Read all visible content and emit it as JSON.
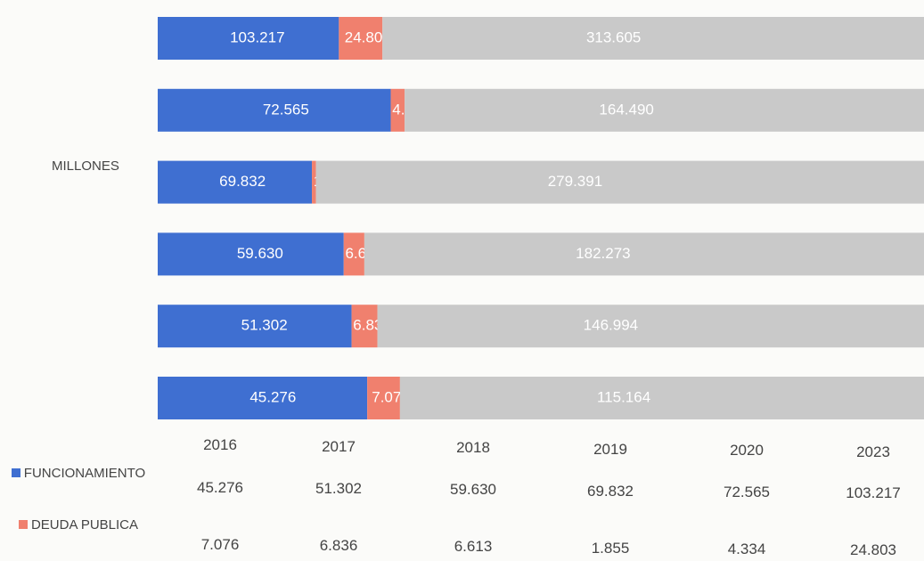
{
  "chart_data": {
    "type": "bar",
    "orientation": "horizontal",
    "stacking": "percent",
    "axis_label": "MILLONES",
    "categories": [
      "2016",
      "2017",
      "2018",
      "2019",
      "2020",
      "2023"
    ],
    "series": [
      {
        "name": "FUNCIONAMIENTO",
        "color": "#3f6fd1",
        "values": [
          45.276,
          51.302,
          59.63,
          69.832,
          72.565,
          103.217
        ],
        "value_labels": [
          "45.276",
          "51.302",
          "59.630",
          "69.832",
          "72.565",
          "103.217"
        ]
      },
      {
        "name": "DEUDA PUBLICA",
        "color": "#f0806e",
        "values": [
          7.076,
          6.836,
          6.613,
          1.855,
          4.334,
          24.803
        ],
        "value_labels": [
          "7.076",
          "6.836",
          "6.613",
          "1.855",
          "4.334",
          "24.803"
        ]
      },
      {
        "color": "#c9c9c9",
        "values": [
          115.164,
          146.994,
          182.273,
          279.391,
          164.49,
          313.605
        ],
        "value_labels": [
          "115.164",
          "146.994",
          "182.273",
          "279.391",
          "164.490",
          "313.605"
        ]
      }
    ]
  }
}
